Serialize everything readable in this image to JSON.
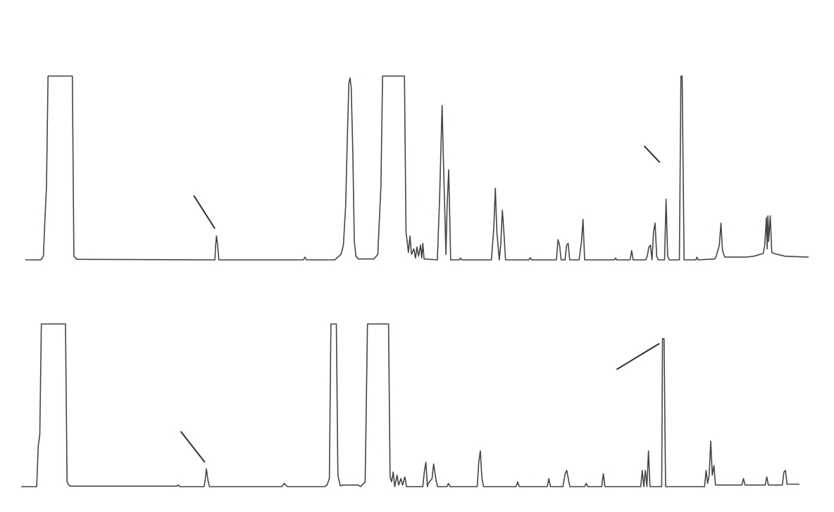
{
  "chart_data": [
    {
      "type": "line",
      "title": "",
      "xlabel": "",
      "ylabel": "",
      "grid": false,
      "xlim": [
        0,
        100
      ],
      "ylim": [
        0,
        100
      ],
      "series": [
        {
          "values": [
            [
              0,
              0
            ],
            [
              2,
              0
            ],
            [
              2.3,
              2
            ],
            [
              2.5,
              22
            ],
            [
              2.7,
              40
            ],
            [
              2.9,
              100
            ],
            [
              6.0,
              100
            ],
            [
              6.2,
              2
            ],
            [
              6.5,
              0.5
            ],
            [
              6.8,
              0.3
            ],
            [
              24.2,
              0
            ],
            [
              24.3,
              8
            ],
            [
              24.4,
              13
            ],
            [
              24.55,
              8
            ],
            [
              24.7,
              0
            ],
            [
              35.5,
              0
            ],
            [
              35.7,
              1.5
            ],
            [
              35.9,
              0
            ],
            [
              39.5,
              0
            ],
            [
              40.3,
              3
            ],
            [
              40.6,
              8
            ],
            [
              40.9,
              30
            ],
            [
              41.1,
              65
            ],
            [
              41.3,
              96
            ],
            [
              41.45,
              99
            ],
            [
              41.6,
              94
            ],
            [
              41.8,
              60
            ],
            [
              42.0,
              10
            ],
            [
              42.2,
              2
            ],
            [
              42.5,
              0.5
            ],
            [
              44.5,
              0.5
            ],
            [
              45.0,
              3
            ],
            [
              45.2,
              22
            ],
            [
              45.4,
              40
            ],
            [
              45.6,
              100
            ],
            [
              48.4,
              100
            ],
            [
              48.6,
              15
            ],
            [
              48.75,
              10
            ],
            [
              48.9,
              4
            ],
            [
              49.1,
              13
            ],
            [
              49.3,
              3
            ],
            [
              49.6,
              6
            ],
            [
              49.8,
              1
            ],
            [
              50.0,
              7
            ],
            [
              50.2,
              2
            ],
            [
              50.45,
              8
            ],
            [
              50.6,
              1
            ],
            [
              50.75,
              9
            ],
            [
              50.9,
              0.5
            ],
            [
              52.6,
              0
            ],
            [
              52.9,
              35
            ],
            [
              53.2,
              84
            ],
            [
              53.4,
              50
            ],
            [
              53.7,
              3
            ],
            [
              53.85,
              30
            ],
            [
              54.05,
              49
            ],
            [
              54.3,
              0
            ],
            [
              55.4,
              0
            ],
            [
              55.55,
              1
            ],
            [
              55.7,
              0
            ],
            [
              59.5,
              0
            ],
            [
              59.8,
              17
            ],
            [
              60.0,
              39
            ],
            [
              60.2,
              15
            ],
            [
              60.5,
              0
            ],
            [
              60.7,
              9
            ],
            [
              60.9,
              27
            ],
            [
              61.1,
              15
            ],
            [
              61.3,
              0
            ],
            [
              64.3,
              0
            ],
            [
              64.45,
              1.2
            ],
            [
              64.6,
              0
            ],
            [
              67.8,
              0
            ],
            [
              68.0,
              11
            ],
            [
              68.2,
              8
            ],
            [
              68.4,
              0
            ],
            [
              68.9,
              0
            ],
            [
              69.1,
              8
            ],
            [
              69.3,
              9
            ],
            [
              69.5,
              0
            ],
            [
              70.7,
              0
            ],
            [
              71.0,
              10
            ],
            [
              71.2,
              22
            ],
            [
              71.4,
              0
            ],
            [
              75.2,
              0
            ],
            [
              75.35,
              1
            ],
            [
              75.5,
              0
            ],
            [
              77.2,
              0
            ],
            [
              77.4,
              5
            ],
            [
              77.6,
              0
            ],
            [
              79.2,
              0
            ],
            [
              79.4,
              2
            ],
            [
              79.6,
              7
            ],
            [
              79.8,
              8
            ],
            [
              80.0,
              0
            ],
            [
              80.2,
              15
            ],
            [
              80.4,
              20
            ],
            [
              80.6,
              2
            ],
            [
              80.8,
              0
            ],
            [
              81.6,
              0
            ],
            [
              81.8,
              33
            ],
            [
              82.0,
              2
            ],
            [
              82.2,
              0
            ],
            [
              83.5,
              0
            ],
            [
              83.7,
              100
            ],
            [
              83.85,
              100
            ],
            [
              84.1,
              0
            ],
            [
              85.6,
              0
            ],
            [
              85.75,
              1.5
            ],
            [
              85.9,
              0
            ],
            [
              88.0,
              0.5
            ],
            [
              88.2,
              2
            ],
            [
              88.6,
              8
            ],
            [
              88.8,
              20
            ],
            [
              89.0,
              5
            ],
            [
              89.3,
              1.5
            ],
            [
              92.0,
              1.5
            ],
            [
              93.0,
              2
            ],
            [
              94.2,
              3.5
            ],
            [
              94.4,
              8
            ],
            [
              94.6,
              23
            ],
            [
              94.7,
              6
            ],
            [
              94.8,
              24
            ],
            [
              94.9,
              10
            ],
            [
              95.1,
              24
            ],
            [
              95.3,
              4
            ],
            [
              96.0,
              3
            ],
            [
              97.0,
              2
            ],
            [
              100,
              1.5
            ]
          ]
        }
      ],
      "annotations": [
        {
          "from": [
            21.5,
            35
          ],
          "to": [
            24.2,
            17
          ]
        },
        {
          "from": [
            79.0,
            62
          ],
          "to": [
            81.0,
            53
          ]
        }
      ]
    },
    {
      "type": "line",
      "title": "",
      "xlabel": "",
      "ylabel": "",
      "grid": false,
      "xlim": [
        0,
        100
      ],
      "ylim": [
        0,
        100
      ],
      "series": [
        {
          "values": [
            [
              0,
              0
            ],
            [
              2,
              0
            ],
            [
              2.2,
              25
            ],
            [
              2.4,
              32
            ],
            [
              2.6,
              100
            ],
            [
              5.7,
              100
            ],
            [
              5.9,
              3
            ],
            [
              6.2,
              0.5
            ],
            [
              6.5,
              0.3
            ],
            [
              20.0,
              0.3
            ],
            [
              20.2,
              1
            ],
            [
              20.4,
              0
            ],
            [
              23.5,
              0
            ],
            [
              23.65,
              4
            ],
            [
              23.8,
              11
            ],
            [
              24.0,
              4
            ],
            [
              24.2,
              0
            ],
            [
              33.5,
              0
            ],
            [
              33.8,
              2
            ],
            [
              34.2,
              0
            ],
            [
              39.0,
              0
            ],
            [
              39.3,
              1
            ],
            [
              39.6,
              5
            ],
            [
              39.8,
              100
            ],
            [
              40.5,
              100
            ],
            [
              40.7,
              7
            ],
            [
              41.0,
              0.5
            ],
            [
              41.4,
              1
            ],
            [
              42.5,
              1
            ],
            [
              43.3,
              1
            ],
            [
              43.6,
              0
            ],
            [
              44.2,
              3
            ],
            [
              44.5,
              100
            ],
            [
              47.2,
              100
            ],
            [
              47.4,
              6
            ],
            [
              47.6,
              3
            ],
            [
              47.8,
              9
            ],
            [
              48.0,
              0
            ],
            [
              48.3,
              7
            ],
            [
              48.5,
              1
            ],
            [
              48.8,
              5
            ],
            [
              49.0,
              1
            ],
            [
              49.3,
              6
            ],
            [
              49.5,
              0
            ],
            [
              51.6,
              0
            ],
            [
              51.8,
              9
            ],
            [
              52.0,
              15
            ],
            [
              52.2,
              0
            ],
            [
              52.3,
              2
            ],
            [
              52.8,
              5
            ],
            [
              53.0,
              14
            ],
            [
              53.3,
              4
            ],
            [
              53.5,
              0
            ],
            [
              54.7,
              0
            ],
            [
              54.9,
              2
            ],
            [
              55.1,
              0
            ],
            [
              58.6,
              0
            ],
            [
              58.8,
              15
            ],
            [
              59.0,
              22
            ],
            [
              59.2,
              5
            ],
            [
              59.4,
              0
            ],
            [
              63.6,
              0
            ],
            [
              63.8,
              3
            ],
            [
              64.0,
              0
            ],
            [
              67.6,
              0
            ],
            [
              67.8,
              5
            ],
            [
              68.0,
              0
            ],
            [
              69.6,
              0
            ],
            [
              69.9,
              8
            ],
            [
              70.1,
              10
            ],
            [
              70.3,
              5
            ],
            [
              70.5,
              0
            ],
            [
              72.4,
              0
            ],
            [
              72.6,
              2
            ],
            [
              72.8,
              0
            ],
            [
              74.6,
              0
            ],
            [
              74.8,
              8
            ],
            [
              75.0,
              0
            ],
            [
              79.6,
              0
            ],
            [
              79.8,
              10
            ],
            [
              80.0,
              0
            ],
            [
              80.2,
              10
            ],
            [
              80.4,
              0
            ],
            [
              80.6,
              22
            ],
            [
              80.8,
              0
            ],
            [
              82.3,
              0
            ],
            [
              82.4,
              91
            ],
            [
              82.6,
              91
            ],
            [
              82.8,
              0
            ],
            [
              87.8,
              0
            ],
            [
              88.0,
              10
            ],
            [
              88.2,
              2
            ],
            [
              88.4,
              7
            ],
            [
              88.6,
              28
            ],
            [
              88.8,
              7
            ],
            [
              89.0,
              13
            ],
            [
              89.2,
              1
            ],
            [
              92.6,
              1
            ],
            [
              92.8,
              5
            ],
            [
              93.0,
              1
            ],
            [
              95.6,
              1
            ],
            [
              95.8,
              6
            ],
            [
              96.0,
              1
            ],
            [
              97.8,
              1
            ],
            [
              98.0,
              9
            ],
            [
              98.2,
              10
            ],
            [
              98.4,
              1.5
            ],
            [
              100,
              1.5
            ]
          ]
        }
      ],
      "annotations": [
        {
          "from": [
            20.5,
            34
          ],
          "to": [
            23.6,
            15
          ]
        },
        {
          "from": [
            76.5,
            72
          ],
          "to": [
            82.0,
            88
          ]
        }
      ]
    }
  ]
}
